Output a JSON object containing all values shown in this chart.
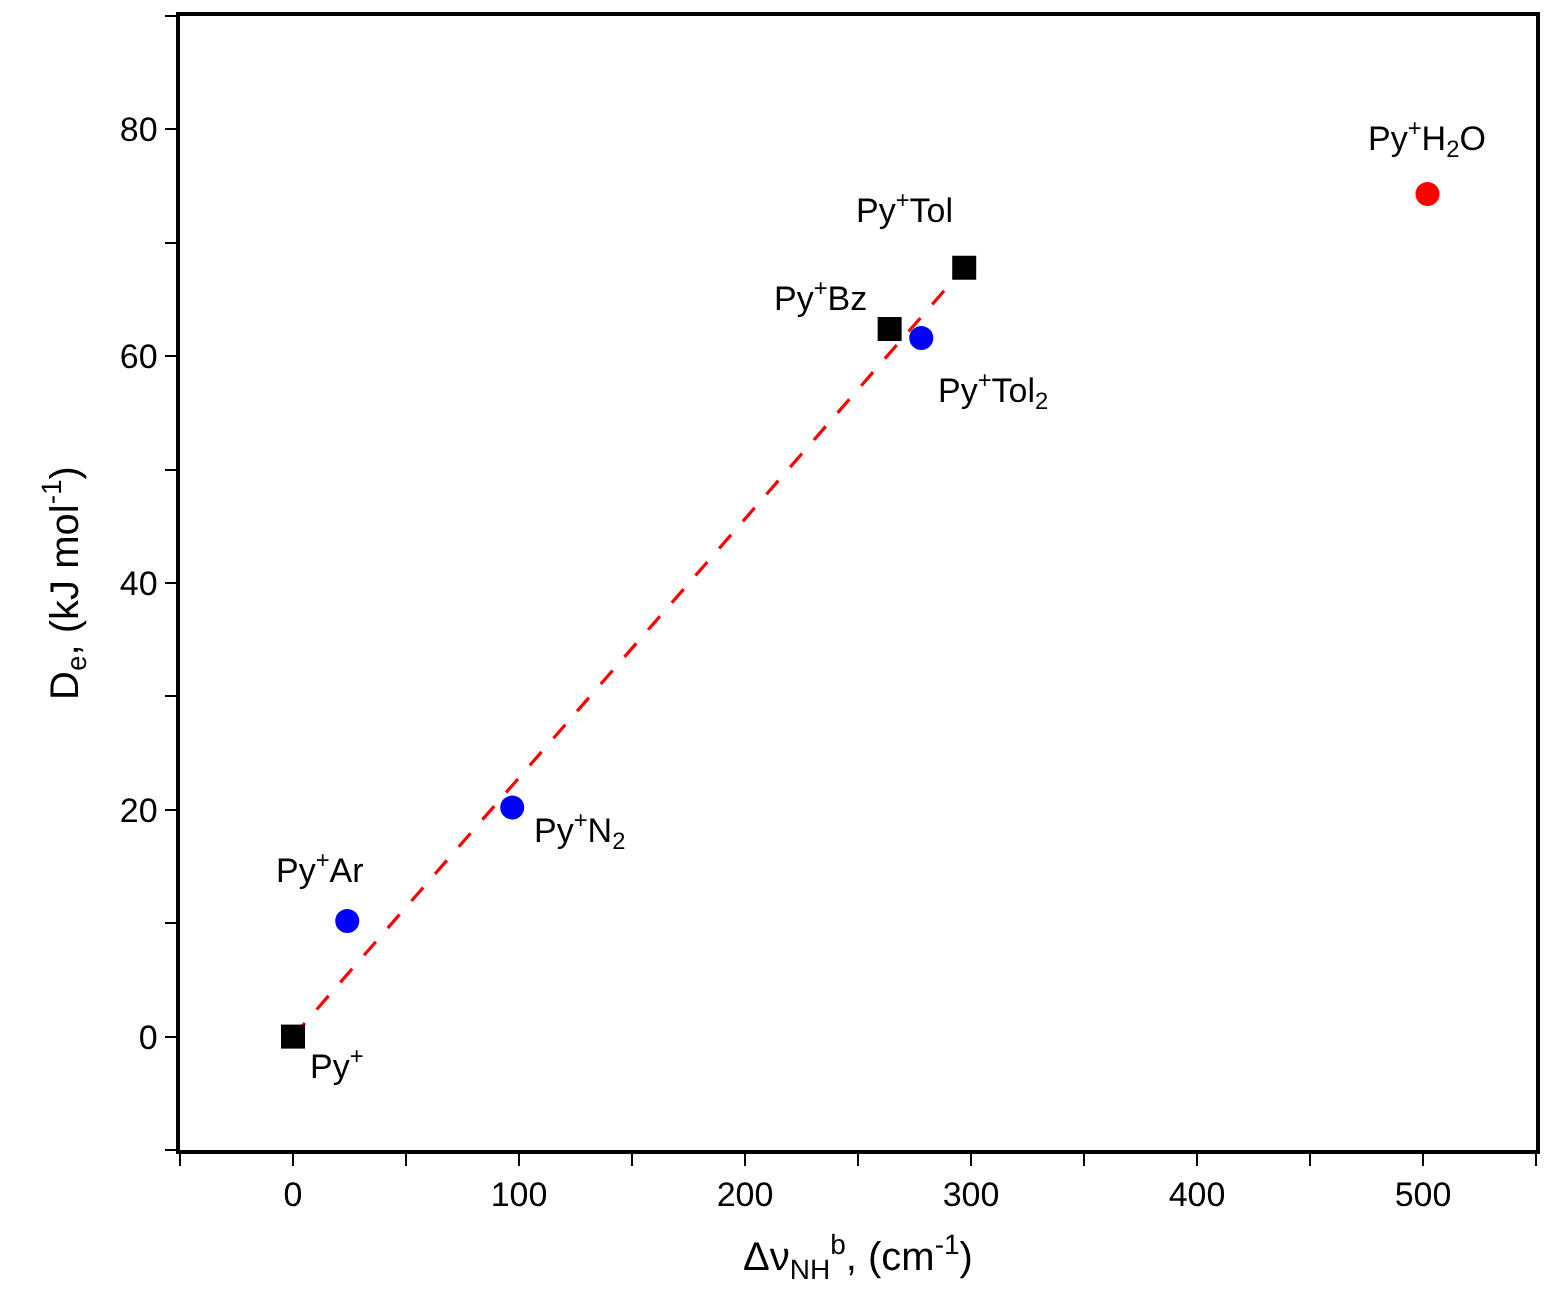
{
  "chart_data": {
    "type": "scatter",
    "xlabel": "Δν$_{NH}$$^{b}$, (cm$^{-1}$)",
    "ylabel": "D$_{e}$, (kJ mol$^{-1}$)",
    "xlim": [
      -50,
      550
    ],
    "ylim": [
      -10,
      90
    ],
    "xticks": [
      {
        "value": -50,
        "label": null
      },
      0,
      {
        "value": 50,
        "label": null
      },
      100,
      {
        "value": 150,
        "label": null
      },
      200,
      {
        "value": 250,
        "label": null
      },
      300,
      {
        "value": 350,
        "label": null
      },
      400,
      {
        "value": 450,
        "label": null
      },
      500,
      {
        "value": 550,
        "label": null
      }
    ],
    "yticks": [
      {
        "value": -10,
        "label": null
      },
      0,
      {
        "value": 10,
        "label": null
      },
      20,
      {
        "value": 30,
        "label": null
      },
      40,
      {
        "value": 50,
        "label": null
      },
      60,
      {
        "value": 70,
        "label": null
      },
      80,
      {
        "value": 90,
        "label": null
      }
    ],
    "series": [
      {
        "type": "line",
        "color": "#ff0000",
        "line_style": "dashed",
        "marker": "none",
        "x": [
          0,
          297
        ],
        "values": [
          0,
          67.8
        ]
      },
      {
        "color": "#000000",
        "marker": "square",
        "x": [
          0,
          264,
          297
        ],
        "values": [
          0,
          62.4,
          67.8
        ]
      },
      {
        "color": "#0000ff",
        "marker": "circle",
        "x": [
          24,
          97,
          278
        ],
        "values": [
          10.2,
          20.2,
          61.6
        ]
      },
      {
        "color": "#ff0000",
        "marker": "circle",
        "x": [
          502
        ],
        "values": [
          74.3
        ]
      }
    ],
    "annotations": [
      {
        "text": "Py$^{+}$",
        "x": 0,
        "y": 0
      },
      {
        "text": "Py$^{+}$Ar",
        "x": 24,
        "y": 10.2
      },
      {
        "text": "Py$^{+}$N$_{2}$",
        "x": 97,
        "y": 20.2
      },
      {
        "text": "Py$^{+}$Bz",
        "x": 264,
        "y": 62.4
      },
      {
        "text": "Py$^{+}$Tol",
        "x": 297,
        "y": 67.8
      },
      {
        "text": "Py$^{+}$Tol$_{2}$",
        "x": 278,
        "y": 61.6
      },
      {
        "text": "Py$^{+}$H$_{2}$O",
        "x": 502,
        "y": 74.3
      }
    ]
  }
}
